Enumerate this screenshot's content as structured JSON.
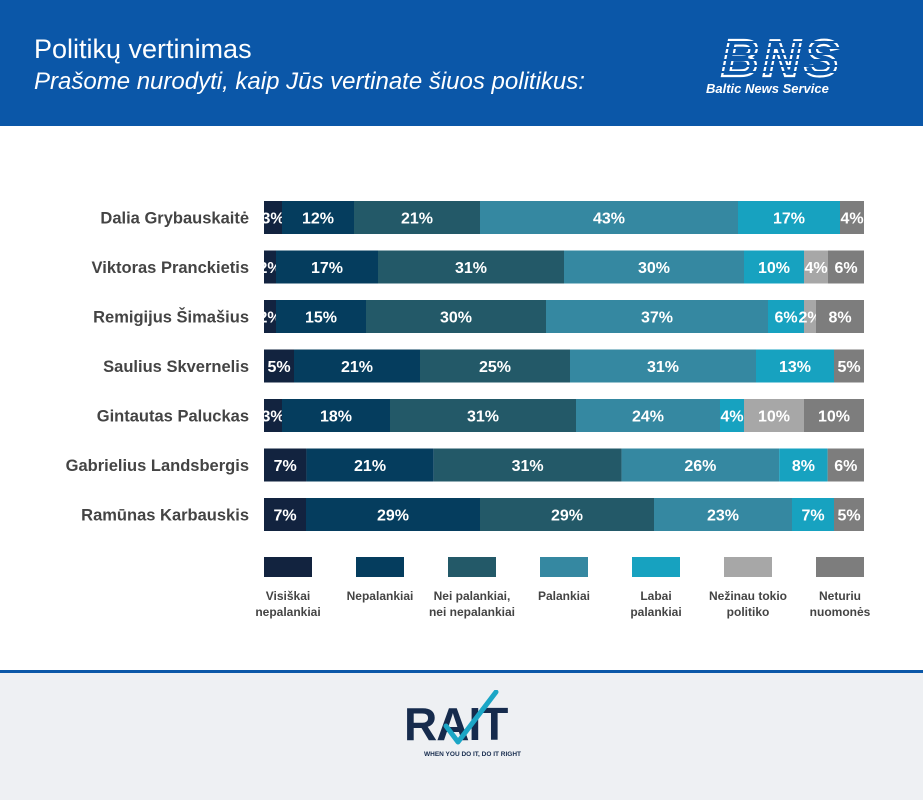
{
  "header": {
    "title": "Politikų vertinimas",
    "subtitle": "Prašome nurodyti, kaip Jūs vertinate šiuos politikus:",
    "brand_caption": "Baltic News Service",
    "brand_logo_text": "BNS",
    "background_color": "#0b57a8"
  },
  "footer": {
    "logo_text": "RAIT",
    "tagline": "WHEN YOU DO IT, DO IT RIGHT"
  },
  "chart_data": {
    "type": "bar",
    "orientation": "horizontal",
    "stacked": true,
    "normalized": true,
    "categories": [
      "Dalia Grybauskaitė",
      "Viktoras Pranckietis",
      "Remigijus Šimašius",
      "Saulius Skvernelis",
      "Gintautas Paluckas",
      "Gabrielius Landsbergis",
      "Ramūnas Karbauskis"
    ],
    "series": [
      {
        "name": "Visiškai nepalankiai",
        "color": "#12233f",
        "values": [
          3,
          2,
          2,
          5,
          3,
          7,
          7
        ]
      },
      {
        "name": "Nepalankiai",
        "color": "#053d5e",
        "values": [
          12,
          17,
          15,
          21,
          18,
          21,
          29
        ]
      },
      {
        "name": "Nei palankiai, nei nepalankiai",
        "color": "#235968",
        "values": [
          21,
          31,
          30,
          25,
          31,
          31,
          29
        ]
      },
      {
        "name": "Palankiai",
        "color": "#3588a1",
        "values": [
          43,
          30,
          37,
          31,
          24,
          26,
          23
        ]
      },
      {
        "name": "Labai palankiai",
        "color": "#17a2c0",
        "values": [
          17,
          10,
          6,
          13,
          4,
          8,
          7
        ]
      },
      {
        "name": "Nežinau tokio politiko",
        "color": "#a7a7a7",
        "values": [
          0,
          4,
          2,
          0,
          10,
          0,
          0
        ]
      },
      {
        "name": "Neturiu nuomonės",
        "color": "#7d7d7d",
        "values": [
          4,
          6,
          8,
          5,
          10,
          6,
          5
        ]
      }
    ],
    "legend_placement": "bottom",
    "legend_labels": [
      [
        "Visiškai",
        "nepalankiai"
      ],
      [
        "Nepalankiai"
      ],
      [
        "Nei palankiai,",
        "nei nepalankiai"
      ],
      [
        "Palankiai"
      ],
      [
        "Labai",
        "palankiai"
      ],
      [
        "Nežinau tokio",
        "politiko"
      ],
      [
        "Neturiu",
        "nuomonės"
      ]
    ],
    "value_suffix": "%",
    "grid": false
  }
}
